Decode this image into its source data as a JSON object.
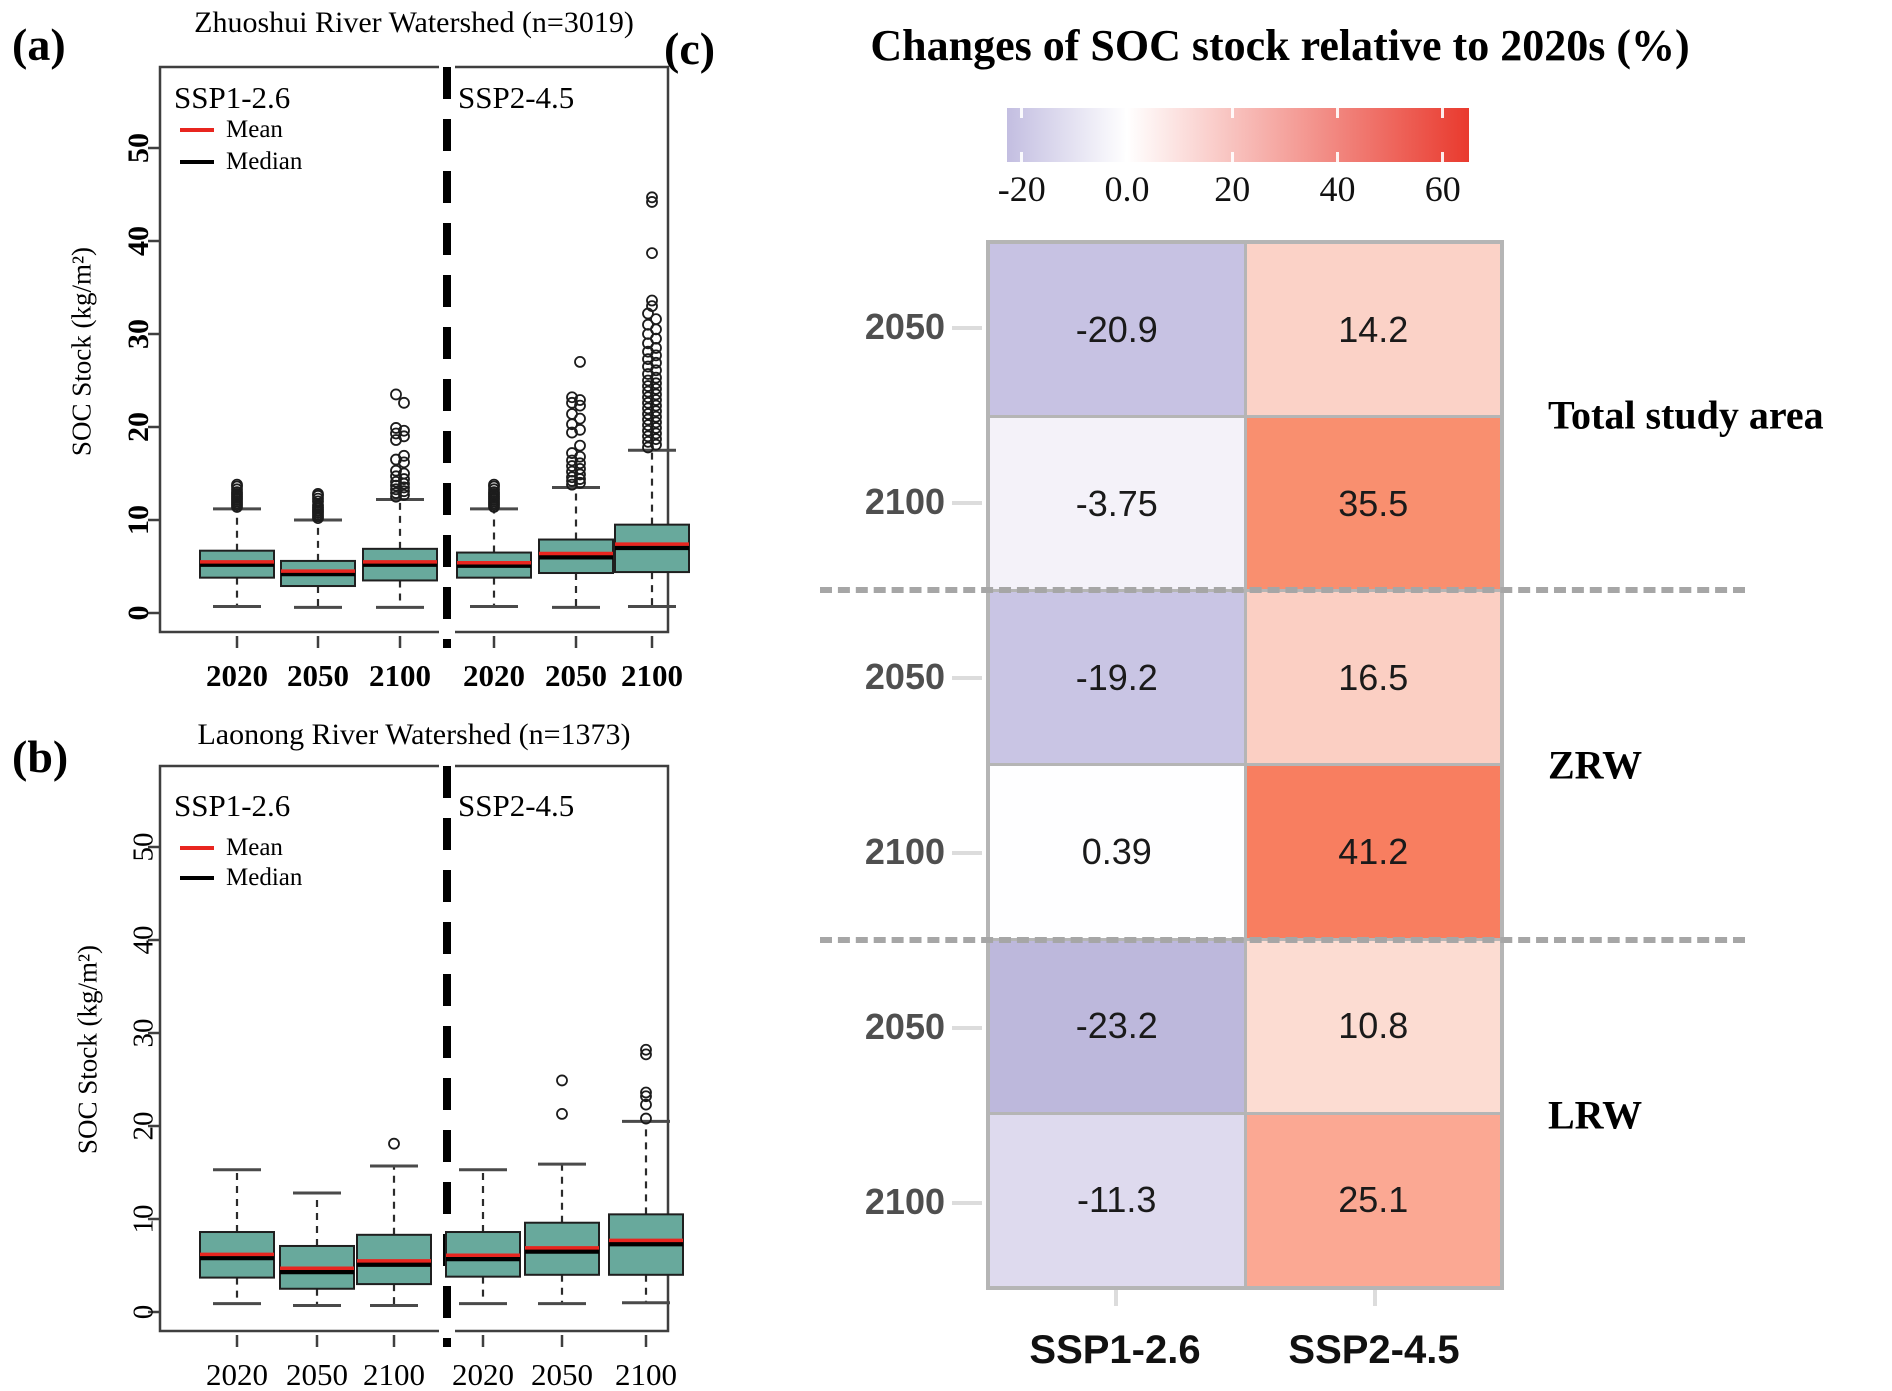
{
  "chart_data": [
    {
      "id": "panel_a",
      "type": "boxplot",
      "panel_label": "(a)",
      "title": "Zhuoshui River Watershed (n=3019)",
      "ylabel": "SOC Stock (kg/m²)",
      "ylim": [
        0,
        55
      ],
      "yticks": [
        0,
        10,
        20,
        30,
        40,
        50
      ],
      "scenarios": [
        "SSP1-2.6",
        "SSP2-4.5"
      ],
      "categories": [
        "2020",
        "2050",
        "2100",
        "2020",
        "2050",
        "2100"
      ],
      "legend": {
        "mean_label": "Mean",
        "median_label": "Median"
      },
      "styles": {
        "box_fill": "#68a99c",
        "mean_color": "#e8251f",
        "median_color": "#000000"
      },
      "series": [
        {
          "scenario": "SSP1-2.6",
          "year": "2020",
          "whisker_low": 0.7,
          "q1": 3.8,
          "median": 5.2,
          "mean": 5.5,
          "q3": 6.7,
          "whisker_high": 11.2,
          "outliers": [
            11.4,
            11.6,
            11.8,
            12.0,
            12.2,
            12.4,
            12.6,
            12.8,
            13.0,
            13.3,
            13.6,
            13.8
          ]
        },
        {
          "scenario": "SSP1-2.6",
          "year": "2050",
          "whisker_low": 0.6,
          "q1": 2.9,
          "median": 4.2,
          "mean": 4.5,
          "q3": 5.6,
          "whisker_high": 10.0,
          "outliers": [
            10.2,
            10.4,
            10.6,
            10.8,
            11.0,
            11.2,
            11.4,
            11.6,
            12.0,
            12.3,
            12.6,
            12.8
          ]
        },
        {
          "scenario": "SSP1-2.6",
          "year": "2100",
          "whisker_low": 0.6,
          "q1": 3.5,
          "median": 5.2,
          "mean": 5.5,
          "q3": 6.9,
          "whisker_high": 12.2,
          "outliers": [
            12.5,
            12.7,
            12.9,
            13.1,
            13.3,
            13.5,
            13.7,
            13.9,
            14.1,
            14.4,
            14.7,
            15.0,
            15.3,
            16.2,
            16.5,
            16.9,
            18.6,
            19.0,
            19.3,
            19.6,
            19.9,
            22.6,
            23.5
          ]
        },
        {
          "scenario": "SSP2-4.5",
          "year": "2020",
          "whisker_low": 0.7,
          "q1": 3.8,
          "median": 5.1,
          "mean": 5.4,
          "q3": 6.5,
          "whisker_high": 11.2,
          "outliers": [
            11.4,
            11.6,
            11.8,
            12.0,
            12.2,
            12.4,
            12.6,
            12.8,
            13.0,
            13.3,
            13.6,
            13.8
          ]
        },
        {
          "scenario": "SSP2-4.5",
          "year": "2050",
          "whisker_low": 0.6,
          "q1": 4.3,
          "median": 6.0,
          "mean": 6.4,
          "q3": 7.9,
          "whisker_high": 13.5,
          "outliers": [
            13.8,
            14.0,
            14.2,
            14.4,
            14.6,
            14.9,
            15.2,
            15.5,
            15.8,
            16.1,
            16.4,
            16.8,
            17.2,
            18.0,
            19.4,
            19.7,
            20.3,
            20.9,
            21.4,
            22.3,
            22.6,
            22.9,
            23.2,
            27.0
          ]
        },
        {
          "scenario": "SSP2-4.5",
          "year": "2100",
          "whisker_low": 0.7,
          "q1": 4.4,
          "median": 7.0,
          "mean": 7.4,
          "q3": 9.5,
          "whisker_high": 17.5,
          "outliers": [
            17.8,
            18.1,
            18.4,
            18.7,
            19.0,
            19.3,
            19.6,
            19.9,
            20.2,
            20.5,
            20.8,
            21.1,
            21.4,
            21.7,
            22.0,
            22.3,
            22.6,
            22.9,
            23.2,
            23.5,
            23.8,
            24.1,
            24.4,
            24.7,
            25.0,
            25.3,
            25.7,
            26.1,
            26.5,
            26.9,
            27.3,
            27.7,
            28.1,
            28.5,
            29.0,
            29.5,
            30.0,
            30.5,
            31.0,
            31.6,
            32.2,
            33.0,
            33.6,
            38.7,
            44.2,
            44.7
          ]
        }
      ]
    },
    {
      "id": "panel_b",
      "type": "boxplot",
      "panel_label": "(b)",
      "title": "Laonong River Watershed (n=1373)",
      "ylabel": "SOC Stock (kg/m²)",
      "ylim": [
        0,
        55
      ],
      "yticks": [
        0,
        10,
        20,
        30,
        40,
        50
      ],
      "scenarios": [
        "SSP1-2.6",
        "SSP2-4.5"
      ],
      "categories": [
        "2020",
        "2050",
        "2100",
        "2020",
        "2050",
        "2100"
      ],
      "legend": {
        "mean_label": "Mean",
        "median_label": "Median"
      },
      "styles": {
        "box_fill": "#68a99c",
        "mean_color": "#e8251f",
        "median_color": "#000000"
      },
      "series": [
        {
          "scenario": "SSP1-2.6",
          "year": "2020",
          "whisker_low": 0.9,
          "q1": 3.7,
          "median": 5.8,
          "mean": 6.2,
          "q3": 8.6,
          "whisker_high": 15.3,
          "outliers": []
        },
        {
          "scenario": "SSP1-2.6",
          "year": "2050",
          "whisker_low": 0.7,
          "q1": 2.5,
          "median": 4.3,
          "mean": 4.7,
          "q3": 7.1,
          "whisker_high": 12.8,
          "outliers": []
        },
        {
          "scenario": "SSP1-2.6",
          "year": "2100",
          "whisker_low": 0.7,
          "q1": 3.0,
          "median": 5.1,
          "mean": 5.5,
          "q3": 8.3,
          "whisker_high": 15.7,
          "outliers": [
            18.1
          ]
        },
        {
          "scenario": "SSP2-4.5",
          "year": "2020",
          "whisker_low": 0.9,
          "q1": 3.8,
          "median": 5.7,
          "mean": 6.1,
          "q3": 8.6,
          "whisker_high": 15.3,
          "outliers": []
        },
        {
          "scenario": "SSP2-4.5",
          "year": "2050",
          "whisker_low": 0.9,
          "q1": 4.0,
          "median": 6.5,
          "mean": 6.9,
          "q3": 9.6,
          "whisker_high": 15.9,
          "outliers": [
            21.3,
            24.9
          ]
        },
        {
          "scenario": "SSP2-4.5",
          "year": "2100",
          "whisker_low": 1.0,
          "q1": 4.0,
          "median": 7.3,
          "mean": 7.7,
          "q3": 10.5,
          "whisker_high": 20.5,
          "outliers": [
            20.8,
            22.3,
            23.2,
            23.6,
            27.7,
            28.2
          ]
        }
      ]
    },
    {
      "id": "panel_c",
      "type": "heatmap",
      "panel_label": "(c)",
      "title": "Changes of SOC stock relative to 2020s (%)",
      "colorbar": {
        "min": -22.8,
        "max": 65,
        "ticks": [
          {
            "label": "-20",
            "value": -20
          },
          {
            "label": "0.0",
            "value": 0
          },
          {
            "label": "20",
            "value": 20
          },
          {
            "label": "40",
            "value": 40
          },
          {
            "label": "60",
            "value": 60
          }
        ],
        "colors": {
          "negative": "#c3bee1",
          "zero": "#ffffff",
          "positive": "#e93a2e"
        }
      },
      "columns": [
        "SSP1-2.6",
        "SSP2-4.5"
      ],
      "groups": [
        {
          "label": "Total study area",
          "rows": [
            {
              "label": "2050",
              "cells": [
                {
                  "text": "-20.9",
                  "value": -20.9,
                  "color": "#c7c2e3"
                },
                {
                  "text": "14.2",
                  "value": 14.2,
                  "color": "#fbd2c7"
                }
              ]
            },
            {
              "label": "2100",
              "cells": [
                {
                  "text": "-3.75",
                  "value": -3.75,
                  "color": "#f4f2f9"
                },
                {
                  "text": "35.5",
                  "value": 35.5,
                  "color": "#f98f6f"
                }
              ]
            }
          ]
        },
        {
          "label": "ZRW",
          "rows": [
            {
              "label": "2050",
              "cells": [
                {
                  "text": "-19.2",
                  "value": -19.2,
                  "color": "#c9c5e4"
                },
                {
                  "text": "16.5",
                  "value": 16.5,
                  "color": "#fbcfc3"
                }
              ]
            },
            {
              "label": "2100",
              "cells": [
                {
                  "text": "0.39",
                  "value": 0.39,
                  "color": "#fefeff"
                },
                {
                  "text": "41.2",
                  "value": 41.2,
                  "color": "#f87e60"
                }
              ]
            }
          ]
        },
        {
          "label": "LRW",
          "rows": [
            {
              "label": "2050",
              "cells": [
                {
                  "text": "-23.2",
                  "value": -23.2,
                  "color": "#bdb8dc"
                },
                {
                  "text": "10.8",
                  "value": 10.8,
                  "color": "#fcdcd2"
                }
              ]
            },
            {
              "label": "2100",
              "cells": [
                {
                  "text": "-11.3",
                  "value": -11.3,
                  "color": "#dedaee"
                },
                {
                  "text": "25.1",
                  "value": 25.1,
                  "color": "#fba893"
                }
              ]
            }
          ]
        }
      ]
    }
  ]
}
